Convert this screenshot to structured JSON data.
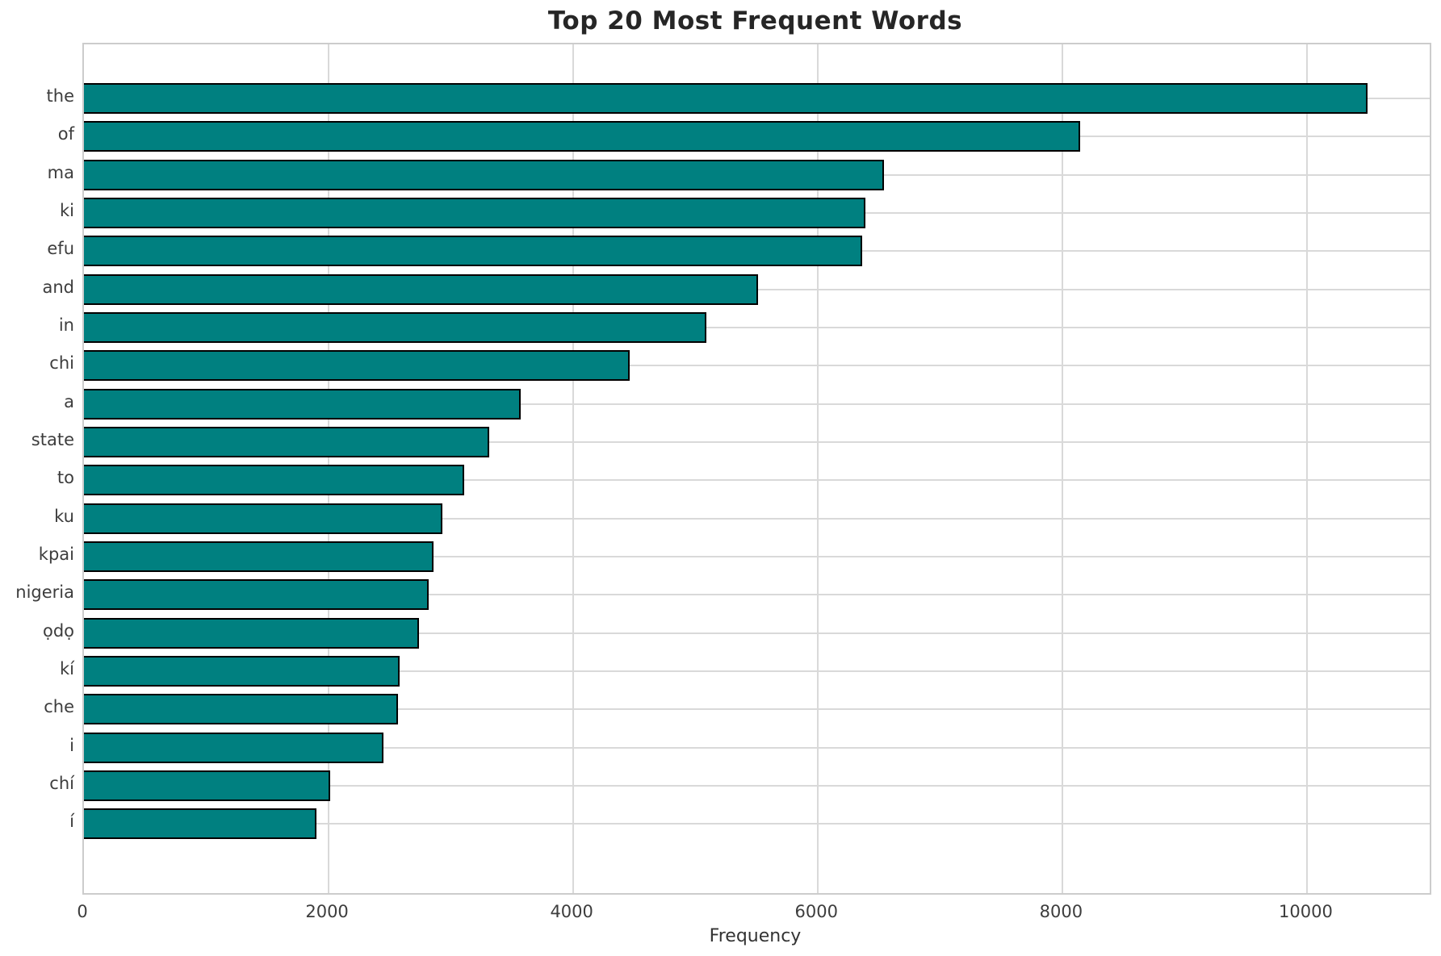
{
  "chart_data": {
    "type": "bar",
    "orientation": "horizontal",
    "title": "Top 20 Most Frequent Words",
    "xlabel": "Frequency",
    "ylabel": "",
    "categories": [
      "the",
      "of",
      "ma",
      "ki",
      "efu",
      "and",
      "in",
      "chi",
      "a",
      "state",
      "to",
      "ku",
      "kpai",
      "nigeria",
      "ọdọ",
      "kí",
      "che",
      "i",
      "chí",
      "í"
    ],
    "values": [
      10490,
      8140,
      6540,
      6390,
      6360,
      5510,
      5090,
      4460,
      3570,
      3310,
      3110,
      2930,
      2860,
      2820,
      2740,
      2580,
      2570,
      2450,
      2010,
      1900
    ],
    "xlim": [
      0,
      11000
    ],
    "xticks": [
      0,
      2000,
      4000,
      6000,
      8000,
      10000
    ],
    "grid": true,
    "legend": false,
    "colors": {
      "bar_fill": "#008080",
      "bar_edge": "#000000",
      "grid": "#d9d9d9",
      "spine": "#cccccc",
      "title_text": "#262626",
      "tick_text": "#3d3d3d",
      "background": "#ffffff"
    }
  }
}
